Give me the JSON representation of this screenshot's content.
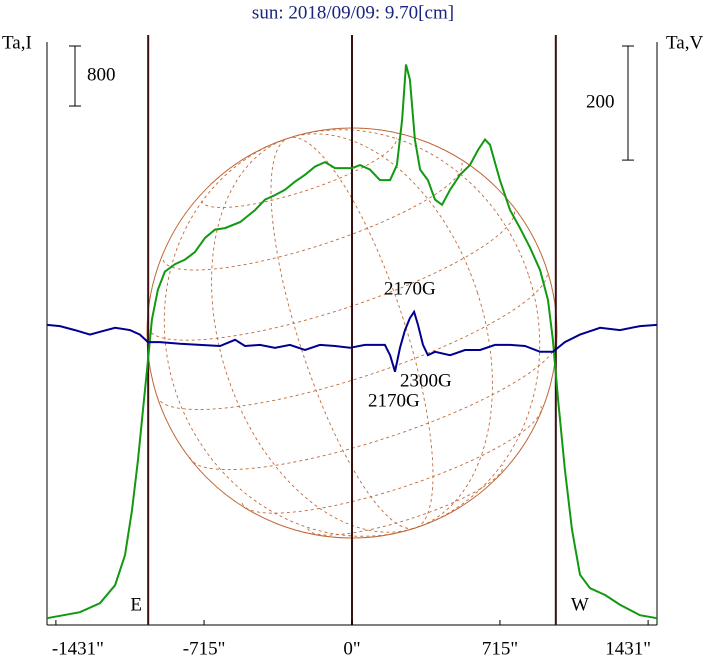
{
  "chart_data": {
    "type": "line",
    "title": "sun: 2018/09/09: 9.70[cm]",
    "xlim": [
      -1474,
      1474
    ],
    "xticks": [
      {
        "value": -1431,
        "label": "-1431\""
      },
      {
        "value": -715,
        "label": "-715\""
      },
      {
        "value": 0,
        "label": "0\""
      },
      {
        "value": 715,
        "label": "715\""
      },
      {
        "value": 1431,
        "label": "1431\""
      }
    ],
    "ylim": [
      -70,
      7700
    ],
    "y2lim": [
      -491,
      531
    ],
    "series": [
      {
        "name": "Ta,I",
        "color": "#119911",
        "x": [
          -1474,
          -1315,
          -1218,
          -1145,
          -1097,
          -1063,
          -1034,
          -1010,
          -986,
          -967,
          -938,
          -904,
          -855,
          -807,
          -759,
          -710,
          -662,
          -614,
          -541,
          -469,
          -420,
          -372,
          -324,
          -275,
          -227,
          -179,
          -130,
          -82,
          -34,
          0,
          39,
          87,
          135,
          184,
          217,
          242,
          261,
          280,
          304,
          329,
          367,
          401,
          435,
          474,
          522,
          570,
          609,
          643,
          667,
          715,
          764,
          812,
          860,
          909,
          947,
          971,
          996,
          1029,
          1063,
          1102,
          1150,
          1223,
          1295,
          1392,
          1474
        ],
        "values": [
          20,
          100,
          220,
          460,
          860,
          1460,
          2130,
          2800,
          3460,
          4000,
          4400,
          4640,
          4740,
          4800,
          4900,
          5090,
          5200,
          5220,
          5300,
          5460,
          5600,
          5660,
          5730,
          5840,
          5930,
          6040,
          6100,
          6020,
          6020,
          6020,
          6060,
          6000,
          5860,
          5860,
          6060,
          6660,
          7400,
          7200,
          6400,
          6000,
          5860,
          5600,
          5530,
          5730,
          5930,
          6060,
          6260,
          6400,
          6330,
          5860,
          5460,
          5220,
          4960,
          4660,
          4260,
          3730,
          2930,
          2000,
          1200,
          600,
          420,
          330,
          200,
          60,
          20
        ]
      },
      {
        "name": "Ta,V",
        "color": "#000090",
        "axis": "y2",
        "x": [
          -1474,
          -1411,
          -1339,
          -1266,
          -1218,
          -1145,
          -1073,
          -1025,
          -986,
          -928,
          -831,
          -735,
          -638,
          -565,
          -517,
          -445,
          -372,
          -300,
          -227,
          -155,
          -82,
          -10,
          63,
          111,
          159,
          184,
          208,
          232,
          256,
          280,
          300,
          319,
          343,
          367,
          401,
          474,
          546,
          619,
          691,
          764,
          836,
          909,
          971,
          1029,
          1102,
          1199,
          1295,
          1392,
          1474
        ],
        "values": [
          35,
          33,
          26,
          18,
          23,
          30,
          26,
          18,
          5,
          5,
          2,
          0,
          -2,
          9,
          -2,
          0,
          -5,
          0,
          -9,
          0,
          -2,
          -5,
          0,
          0,
          0,
          -18,
          -47,
          -5,
          26,
          47,
          58,
          35,
          0,
          -18,
          -12,
          -18,
          -9,
          -9,
          0,
          0,
          -2,
          -12,
          -12,
          5,
          18,
          30,
          26,
          33,
          35
        ]
      }
    ],
    "scale_bars": [
      {
        "value": 800
      },
      {
        "value": 200,
        "axis": "y2"
      }
    ],
    "markers": [
      {
        "x": -985,
        "label": "E"
      },
      {
        "x": 0
      },
      {
        "x": 985,
        "label": "W"
      }
    ],
    "annotations": [
      "2170G",
      "2300G",
      "2170G"
    ]
  }
}
